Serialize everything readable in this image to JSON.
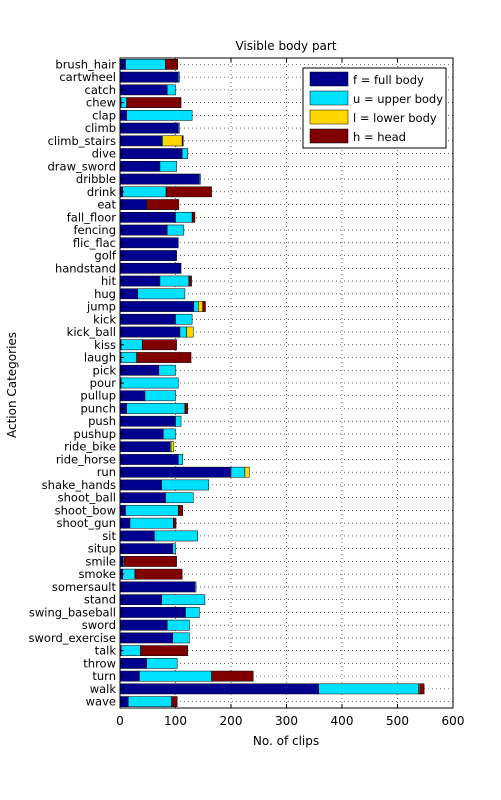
{
  "chart_data": {
    "type": "bar",
    "orientation": "horizontal",
    "stacked": true,
    "title": "Visible body part",
    "xlabel": "No. of clips",
    "ylabel": "Action Categories",
    "xlim": [
      0,
      600
    ],
    "xticks": [
      "0",
      "100",
      "200",
      "300",
      "400",
      "500",
      "600"
    ],
    "grid": true,
    "legend_position": "top-right",
    "categories": [
      "brush_hair",
      "cartwheel",
      "catch",
      "chew",
      "clap",
      "climb",
      "climb_stairs",
      "dive",
      "draw_sword",
      "dribble",
      "drink",
      "eat",
      "fall_floor",
      "fencing",
      "flic_flac",
      "golf",
      "handstand",
      "hit",
      "hug",
      "jump",
      "kick",
      "kick_ball",
      "kiss",
      "laugh",
      "pick",
      "pour",
      "pullup",
      "punch",
      "push",
      "pushup",
      "ride_bike",
      "ride_horse",
      "run",
      "shake_hands",
      "shoot_ball",
      "shoot_bow",
      "shoot_gun",
      "sit",
      "situp",
      "smile",
      "smoke",
      "somersault",
      "stand",
      "swing_baseball",
      "sword",
      "sword_exercise",
      "talk",
      "throw",
      "turn",
      "walk",
      "wave"
    ],
    "series": [
      {
        "name": "f = full body",
        "color": "#00008f",
        "values": [
          10,
          105,
          85,
          2,
          12,
          105,
          75,
          112,
          72,
          143,
          5,
          48,
          100,
          85,
          105,
          102,
          110,
          72,
          32,
          133,
          100,
          108,
          2,
          2,
          70,
          2,
          45,
          12,
          100,
          78,
          90,
          105,
          200,
          75,
          82,
          10,
          18,
          62,
          95,
          5,
          5,
          135,
          75,
          118,
          85,
          95,
          2,
          48,
          35,
          358,
          15
        ]
      },
      {
        "name": "u = upper body",
        "color": "#00e0ff",
        "values": [
          72,
          2,
          15,
          10,
          118,
          2,
          2,
          10,
          30,
          2,
          78,
          0,
          30,
          30,
          0,
          0,
          0,
          52,
          85,
          8,
          30,
          12,
          38,
          28,
          30,
          103,
          55,
          105,
          10,
          22,
          2,
          8,
          25,
          85,
          50,
          95,
          78,
          78,
          5,
          2,
          22,
          2,
          78,
          25,
          40,
          30,
          35,
          55,
          130,
          180,
          78
        ]
      },
      {
        "name": "l = lower body",
        "color": "#ffd700",
        "values": [
          0,
          0,
          0,
          0,
          0,
          0,
          35,
          0,
          0,
          0,
          0,
          0,
          0,
          0,
          0,
          0,
          0,
          0,
          0,
          8,
          0,
          12,
          0,
          0,
          0,
          0,
          0,
          0,
          0,
          0,
          5,
          0,
          8,
          0,
          0,
          0,
          0,
          0,
          0,
          0,
          0,
          0,
          0,
          0,
          0,
          0,
          0,
          0,
          0,
          2,
          0
        ]
      },
      {
        "name": "h = head",
        "color": "#800000",
        "values": [
          22,
          0,
          0,
          98,
          0,
          0,
          2,
          0,
          0,
          0,
          82,
          58,
          5,
          0,
          0,
          0,
          0,
          5,
          0,
          5,
          0,
          0,
          62,
          98,
          0,
          0,
          0,
          5,
          0,
          0,
          0,
          0,
          0,
          0,
          0,
          8,
          5,
          0,
          0,
          95,
          85,
          0,
          0,
          0,
          0,
          0,
          85,
          0,
          75,
          8,
          10
        ]
      }
    ]
  }
}
